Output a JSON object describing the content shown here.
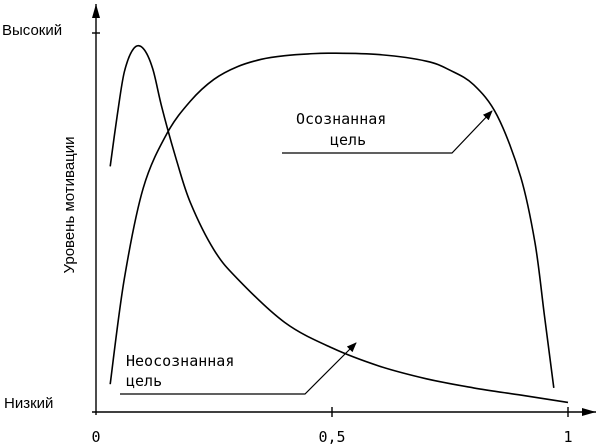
{
  "chart_data": {
    "type": "line",
    "xlabel": "",
    "ylabel": "Уровень мотивации",
    "xlim": [
      0,
      1
    ],
    "x_ticks": [
      {
        "value": 0,
        "label": "0"
      },
      {
        "value": 0.5,
        "label": "0,5"
      },
      {
        "value": 1,
        "label": "1"
      }
    ],
    "y_tick_labels": {
      "high": "Высокий",
      "low": "Низкий"
    },
    "grid": false,
    "legend": "none",
    "series": [
      {
        "name": "Осознанная цель",
        "x": [
          0.03,
          0.06,
          0.1,
          0.15,
          0.2,
          0.25,
          0.3,
          0.35,
          0.4,
          0.45,
          0.5,
          0.6,
          0.7,
          0.75,
          0.8,
          0.85,
          0.9,
          0.93,
          0.95,
          0.97
        ],
        "y": [
          0.06,
          0.35,
          0.6,
          0.75,
          0.84,
          0.9,
          0.935,
          0.955,
          0.965,
          0.97,
          0.972,
          0.968,
          0.95,
          0.925,
          0.885,
          0.8,
          0.63,
          0.45,
          0.25,
          0.05
        ]
      },
      {
        "name": "Неосознанная цель",
        "x": [
          0.03,
          0.045,
          0.06,
          0.08,
          0.1,
          0.12,
          0.14,
          0.17,
          0.2,
          0.25,
          0.3,
          0.4,
          0.5,
          0.6,
          0.7,
          0.8,
          0.9,
          1.0
        ],
        "y": [
          0.66,
          0.8,
          0.92,
          0.985,
          0.985,
          0.93,
          0.82,
          0.68,
          0.56,
          0.43,
          0.35,
          0.23,
          0.16,
          0.11,
          0.075,
          0.05,
          0.03,
          0.01
        ]
      }
    ],
    "annotations": {
      "conscious": [
        "Осознанная",
        "цель"
      ],
      "unconscious": [
        "Неосознанная",
        "цель"
      ]
    }
  }
}
